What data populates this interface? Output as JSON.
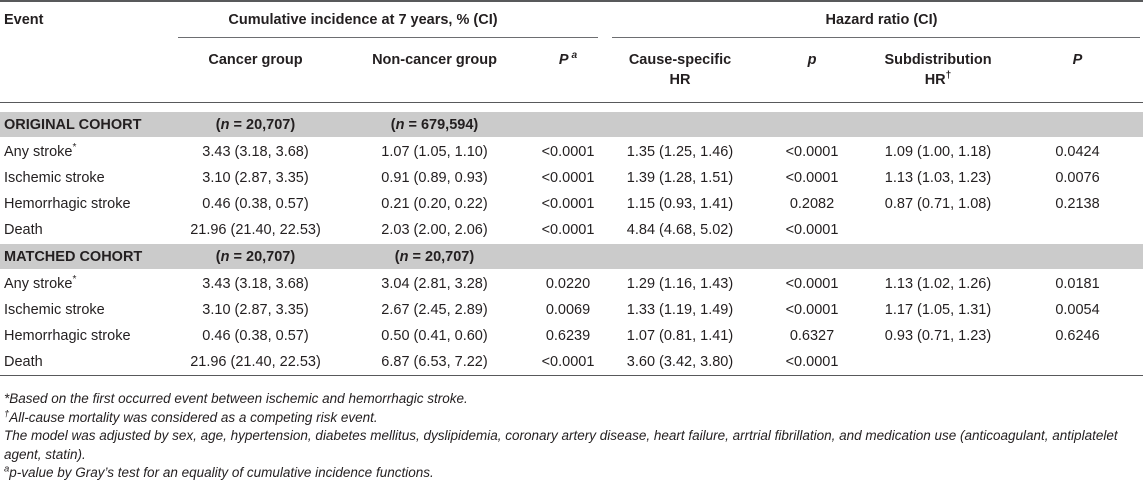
{
  "table": {
    "header": {
      "event": "Event",
      "cumulative_group": "Cumulative incidence at 7 years, % (CI)",
      "hazard_group": "Hazard ratio (CI)",
      "cancer_group": "Cancer group",
      "non_cancer_group": "Non-cancer group",
      "gray_p": {
        "text": "P",
        "sup": "a"
      },
      "cause_specific_hr": "Cause-specific HR",
      "cause_specific_p": "p",
      "subdistribution_hr": {
        "text": "Subdistribution HR",
        "sup": "†"
      },
      "subdistribution_p": "P"
    },
    "sections": [
      {
        "title": "ORIGINAL COHORT",
        "cancer_n": {
          "open": "(",
          "var": "n",
          "rest": " = 20,707)"
        },
        "non_cancer_n": {
          "open": "(",
          "var": "n",
          "rest": " = 679,594)"
        },
        "rows": [
          {
            "event": "Any stroke",
            "event_sup": "*",
            "cancer": "3.43 (3.18, 3.68)",
            "non_cancer": "1.07 (1.05, 1.10)",
            "gray_p": "<0.0001",
            "cs_hr": "1.35 (1.25, 1.46)",
            "cs_p": "<0.0001",
            "sd_hr": "1.09 (1.00, 1.18)",
            "sd_p": "0.0424"
          },
          {
            "event": "Ischemic stroke",
            "cancer": "3.10 (2.87, 3.35)",
            "non_cancer": "0.91 (0.89, 0.93)",
            "gray_p": "<0.0001",
            "cs_hr": "1.39 (1.28, 1.51)",
            "cs_p": "<0.0001",
            "sd_hr": "1.13 (1.03, 1.23)",
            "sd_p": "0.0076"
          },
          {
            "event": "Hemorrhagic stroke",
            "cancer": "0.46 (0.38, 0.57)",
            "non_cancer": "0.21 (0.20, 0.22)",
            "gray_p": "<0.0001",
            "cs_hr": "1.15 (0.93, 1.41)",
            "cs_p": "0.2082",
            "sd_hr": "0.87 (0.71, 1.08)",
            "sd_p": "0.2138"
          },
          {
            "event": "Death",
            "cancer": "21.96 (21.40, 22.53)",
            "non_cancer": "2.03 (2.00, 2.06)",
            "gray_p": "<0.0001",
            "cs_hr": "4.84 (4.68, 5.02)",
            "cs_p": "<0.0001"
          }
        ]
      },
      {
        "title": "MATCHED COHORT",
        "cancer_n": {
          "open": "(",
          "var": "n",
          "rest": " = 20,707)"
        },
        "non_cancer_n": {
          "open": "(",
          "var": "n",
          "rest": " = 20,707)"
        },
        "rows": [
          {
            "event": "Any stroke",
            "event_sup": "*",
            "cancer": "3.43 (3.18, 3.68)",
            "non_cancer": "3.04 (2.81, 3.28)",
            "gray_p": "0.0220",
            "cs_hr": "1.29 (1.16, 1.43)",
            "cs_p": "<0.0001",
            "sd_hr": "1.13 (1.02, 1.26)",
            "sd_p": "0.0181"
          },
          {
            "event": "Ischemic stroke",
            "cancer": "3.10 (2.87, 3.35)",
            "non_cancer": "2.67 (2.45, 2.89)",
            "gray_p": "0.0069",
            "cs_hr": "1.33 (1.19, 1.49)",
            "cs_p": "<0.0001",
            "sd_hr": "1.17 (1.05, 1.31)",
            "sd_p": "0.0054"
          },
          {
            "event": "Hemorrhagic stroke",
            "cancer": "0.46 (0.38, 0.57)",
            "non_cancer": "0.50 (0.41, 0.60)",
            "gray_p": "0.6239",
            "cs_hr": "1.07 (0.81, 1.41)",
            "cs_p": "0.6327",
            "sd_hr": "0.93 (0.71, 1.23)",
            "sd_p": "0.6246"
          },
          {
            "event": "Death",
            "cancer": "21.96 (21.40, 22.53)",
            "non_cancer": "6.87 (6.53, 7.22)",
            "gray_p": "<0.0001",
            "cs_hr": "3.60 (3.42, 3.80)",
            "cs_p": "<0.0001"
          }
        ]
      }
    ]
  },
  "footnotes": [
    {
      "text": "*Based on the first occurred event between ischemic and hemorrhagic stroke."
    },
    {
      "sup": "†",
      "text": "All-cause mortality was considered as a competing risk event."
    },
    {
      "text": "The model was adjusted by sex, age, hypertension, diabetes mellitus, dyslipidemia, coronary artery disease, heart failure, arrtrial fibrillation, and medication use (anticoagulant, antiplatelet agent, statin)."
    },
    {
      "sup": "a",
      "text": "p-value by Gray’s test for an equality of cumulative incidence functions."
    }
  ],
  "colors": {
    "text": "#231f20",
    "section_band": "#cbcbcb",
    "rule": "#58595b",
    "group_rule": "#6d6e71"
  }
}
